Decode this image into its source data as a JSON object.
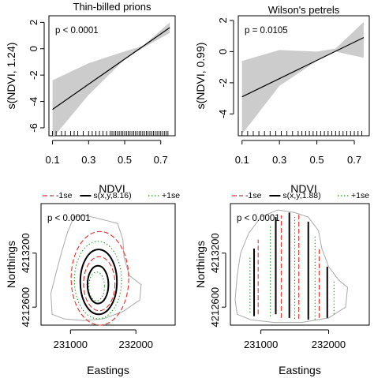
{
  "chart_data": [
    {
      "type": "line",
      "title": "Thin-billed prions",
      "xlabel": "NDVI",
      "ylabel": "s(NDVI, 1.24)",
      "annotation": "p < 0.0001",
      "xlim": [
        0.08,
        0.78
      ],
      "ylim": [
        -6.6,
        2.5
      ],
      "xticks": [
        "0.1",
        "0.3",
        "0.5",
        "0.7"
      ],
      "xtick_values": [
        0.1,
        0.3,
        0.5,
        0.7
      ],
      "yticks": [
        "-6",
        "-4",
        "-2",
        "0",
        "2"
      ],
      "ytick_values": [
        -6,
        -4,
        -2,
        0,
        2
      ],
      "fit": {
        "x": [
          0.1,
          0.75
        ],
        "y": [
          -4.6,
          1.6
        ]
      },
      "band_upper": {
        "x": [
          0.1,
          0.3,
          0.5,
          0.6,
          0.75
        ],
        "y": [
          -2.4,
          -1.1,
          -0.2,
          0.2,
          2.0
        ]
      },
      "band_lower": {
        "x": [
          0.1,
          0.3,
          0.5,
          0.6,
          0.75
        ],
        "y": [
          -6.8,
          -3.5,
          -0.8,
          0.05,
          1.2
        ]
      },
      "rug": [
        0.1,
        0.12,
        0.15,
        0.17,
        0.2,
        0.22,
        0.24,
        0.27,
        0.3,
        0.32,
        0.34,
        0.36,
        0.38,
        0.4,
        0.42,
        0.43,
        0.44,
        0.45,
        0.46,
        0.47,
        0.48,
        0.49,
        0.5,
        0.51,
        0.52,
        0.53,
        0.54,
        0.55,
        0.56,
        0.57,
        0.58,
        0.59,
        0.6,
        0.61,
        0.62,
        0.63,
        0.64,
        0.65,
        0.66,
        0.67,
        0.68,
        0.69,
        0.7,
        0.71,
        0.72,
        0.73,
        0.74
      ],
      "band_color": "#cccccc"
    },
    {
      "type": "line",
      "title": "Wilson's petrels",
      "xlabel": "NDVI",
      "ylabel": "s(NDVI, 0.99)",
      "annotation": "p = 0.0105",
      "xlim": [
        0.08,
        0.78
      ],
      "ylim": [
        -5.4,
        2.3
      ],
      "xticks": [
        "0.1",
        "0.3",
        "0.5",
        "0.7"
      ],
      "xtick_values": [
        0.1,
        0.3,
        0.5,
        0.7
      ],
      "yticks": [
        "-4",
        "-2",
        "0",
        "2"
      ],
      "ytick_values": [
        -4,
        -2,
        0,
        2
      ],
      "fit": {
        "x": [
          0.1,
          0.75
        ],
        "y": [
          -2.9,
          0.9
        ]
      },
      "band_upper": {
        "x": [
          0.1,
          0.3,
          0.5,
          0.6,
          0.75
        ],
        "y": [
          -0.6,
          0.1,
          0.0,
          0.2,
          1.9
        ]
      },
      "band_lower": {
        "x": [
          0.1,
          0.3,
          0.5,
          0.6,
          0.75
        ],
        "y": [
          -5.3,
          -2.2,
          -0.6,
          0.0,
          -0.4
        ]
      },
      "rug": [
        0.1,
        0.13,
        0.16,
        0.19,
        0.22,
        0.25,
        0.28,
        0.31,
        0.34,
        0.37,
        0.4,
        0.42,
        0.44,
        0.46,
        0.48,
        0.5,
        0.52,
        0.54,
        0.56,
        0.58,
        0.6,
        0.62,
        0.64,
        0.66,
        0.68,
        0.7,
        0.72,
        0.74
      ],
      "band_color": "#cccccc"
    },
    {
      "type": "contour",
      "xlabel": "Eastings",
      "ylabel": "Northings",
      "annotation": "p < 0.0001",
      "legend": [
        {
          "label": "-1se",
          "color": "#e0312b",
          "style": "dashed"
        },
        {
          "label": "s(x,y,8.16)",
          "color": "#000000",
          "style": "solid"
        },
        {
          "label": "+1se",
          "color": "#28a028",
          "style": "dotted"
        }
      ],
      "xlim": [
        230550,
        232600
      ],
      "ylim": [
        4212400,
        4213750
      ],
      "xticks": [
        "231000",
        "232000"
      ],
      "xtick_values": [
        231000,
        232000
      ],
      "yticks": [
        "4212600",
        "4213200"
      ],
      "ytick_values": [
        4212600,
        4213200
      ],
      "colony_outline": [
        [
          230720,
          4212520
        ],
        [
          230700,
          4212750
        ],
        [
          230780,
          4212980
        ],
        [
          230860,
          4213200
        ],
        [
          230950,
          4213420
        ],
        [
          231050,
          4213600
        ],
        [
          231200,
          4213620
        ],
        [
          231400,
          4213590
        ],
        [
          231560,
          4213560
        ],
        [
          231720,
          4213530
        ],
        [
          231800,
          4213350
        ],
        [
          231820,
          4213150
        ],
        [
          231900,
          4212950
        ],
        [
          232080,
          4212850
        ],
        [
          232060,
          4212680
        ],
        [
          231800,
          4212550
        ],
        [
          231500,
          4212470
        ],
        [
          231200,
          4212450
        ],
        [
          230900,
          4212470
        ]
      ],
      "contours": [
        {
          "style": "solid",
          "cx": 231430,
          "cy": 4212880,
          "rx": 280,
          "ry": 360
        },
        {
          "style": "solid",
          "cx": 231420,
          "cy": 4212850,
          "rx": 160,
          "ry": 210
        },
        {
          "style": "dashed",
          "cx": 231450,
          "cy": 4212920,
          "rx": 440,
          "ry": 520
        },
        {
          "style": "dashed",
          "cx": 231440,
          "cy": 4212860,
          "rx": 240,
          "ry": 300
        },
        {
          "style": "dotted",
          "cx": 231420,
          "cy": 4212900,
          "rx": 360,
          "ry": 430
        },
        {
          "style": "dotted",
          "cx": 231400,
          "cy": 4212830,
          "rx": 120,
          "ry": 160
        }
      ]
    },
    {
      "type": "contour",
      "xlabel": "Eastings",
      "ylabel": "Northings",
      "annotation": "p < 0.0001",
      "legend": [
        {
          "label": "-1se",
          "color": "#e0312b",
          "style": "dashed"
        },
        {
          "label": "s(x,y,1.88)",
          "color": "#000000",
          "style": "solid"
        },
        {
          "label": "+1se",
          "color": "#28a028",
          "style": "dotted"
        }
      ],
      "xlim": [
        230550,
        232600
      ],
      "ylim": [
        4212400,
        4213750
      ],
      "xticks": [
        "231000",
        "232000"
      ],
      "xtick_values": [
        231000,
        232000
      ],
      "yticks": [
        "4212600",
        "4213200"
      ],
      "ytick_values": [
        4212600,
        4213200
      ],
      "colony_outline": [
        [
          230620,
          4212680
        ],
        [
          230650,
          4212950
        ],
        [
          230700,
          4213200
        ],
        [
          230820,
          4213420
        ],
        [
          231000,
          4213600
        ],
        [
          231250,
          4213680
        ],
        [
          231500,
          4213650
        ],
        [
          231700,
          4213600
        ],
        [
          231850,
          4213450
        ],
        [
          231900,
          4213250
        ],
        [
          232000,
          4213050
        ],
        [
          232150,
          4212900
        ],
        [
          232280,
          4212820
        ],
        [
          232250,
          4212600
        ],
        [
          232000,
          4212480
        ],
        [
          231600,
          4212430
        ],
        [
          231200,
          4212430
        ],
        [
          230850,
          4212460
        ],
        [
          230650,
          4212520
        ]
      ],
      "vertical_lines": [
        {
          "style": "solid",
          "x": 230900,
          "y1": 4212500,
          "y2": 4213250
        },
        {
          "style": "solid",
          "x": 231220,
          "y1": 4212520,
          "y2": 4213600
        },
        {
          "style": "solid",
          "x": 231420,
          "y1": 4212480,
          "y2": 4213650
        },
        {
          "style": "solid",
          "x": 231700,
          "y1": 4212460,
          "y2": 4213550
        },
        {
          "style": "solid",
          "x": 231980,
          "y1": 4212480,
          "y2": 4213050
        },
        {
          "style": "dashed",
          "x": 230960,
          "y1": 4212520,
          "y2": 4213350
        },
        {
          "style": "dashed",
          "x": 231300,
          "y1": 4212480,
          "y2": 4213620
        },
        {
          "style": "dashed",
          "x": 231560,
          "y1": 4212470,
          "y2": 4213640
        },
        {
          "style": "dashed",
          "x": 231860,
          "y1": 4212480,
          "y2": 4213250
        },
        {
          "style": "dotted",
          "x": 230840,
          "y1": 4212540,
          "y2": 4213150
        },
        {
          "style": "dotted",
          "x": 231140,
          "y1": 4212500,
          "y2": 4213500
        },
        {
          "style": "dotted",
          "x": 231500,
          "y1": 4212470,
          "y2": 4213600
        },
        {
          "style": "dotted",
          "x": 231800,
          "y1": 4212460,
          "y2": 4213400
        },
        {
          "style": "dotted",
          "x": 232080,
          "y1": 4212520,
          "y2": 4212900
        }
      ]
    }
  ]
}
